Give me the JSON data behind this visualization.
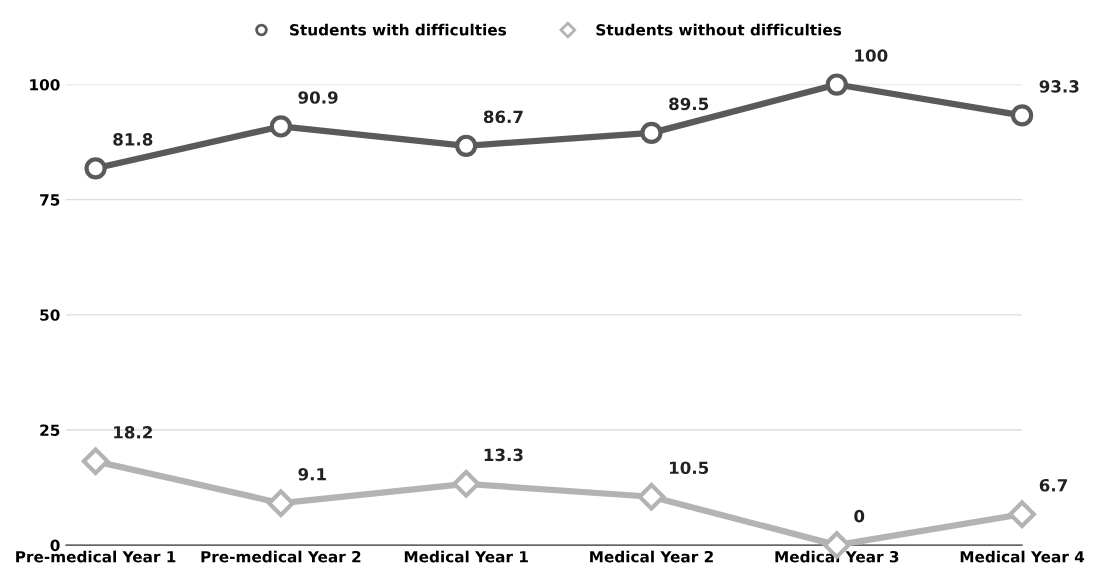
{
  "chart_data": {
    "type": "line",
    "categories": [
      "Pre-medical Year 1",
      "Pre-medical Year 2",
      "Medical Year 1",
      "Medical Year 2",
      "Medical Year 3",
      "Medical Year 4"
    ],
    "series": [
      {
        "name": "Students with difficulties",
        "color": "#5a5a5a",
        "marker": "circle",
        "values": [
          81.8,
          90.9,
          86.7,
          89.5,
          100,
          93.3
        ]
      },
      {
        "name": "Students without difficulties",
        "color": "#b3b3b3",
        "marker": "diamond",
        "values": [
          18.2,
          9.1,
          13.3,
          10.5,
          0,
          6.7
        ]
      }
    ],
    "ylim": [
      0,
      100
    ],
    "yticks": [
      0,
      25,
      50,
      75,
      100
    ],
    "grid": "y",
    "legend": "top",
    "data_labels": true,
    "line_style": "solid"
  }
}
